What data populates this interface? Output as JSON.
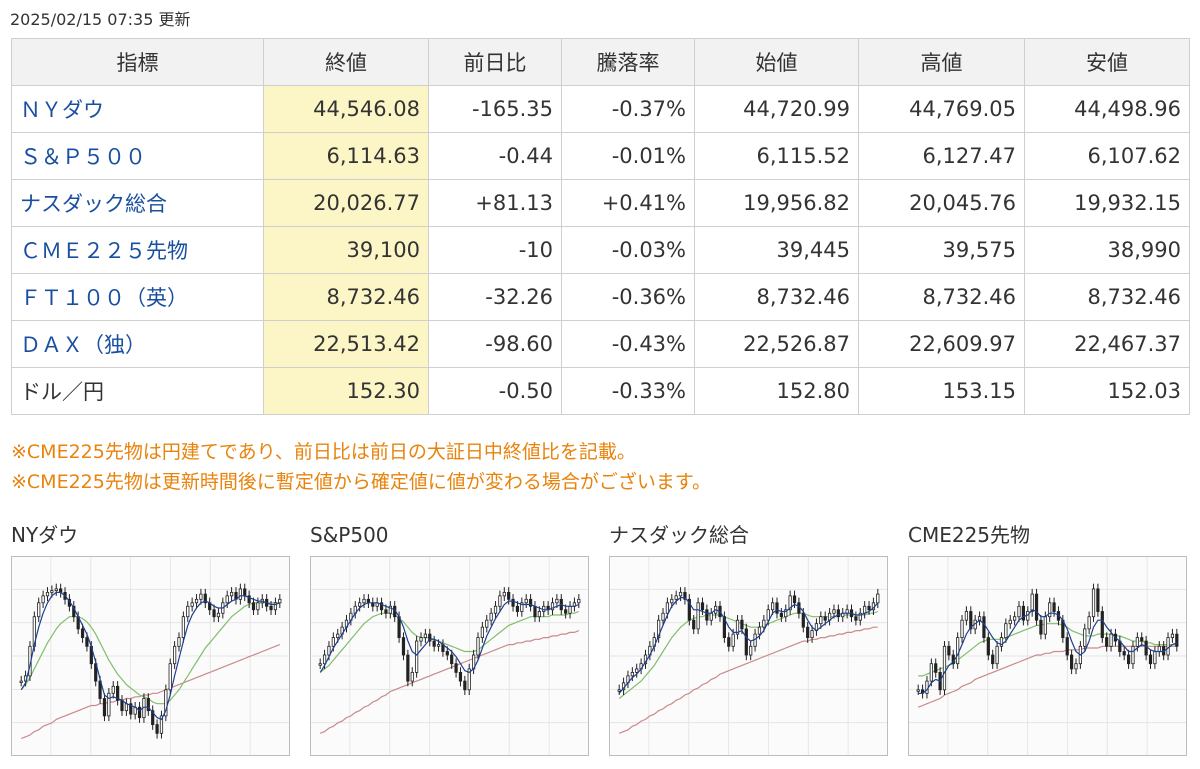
{
  "updated": "2025/02/15 07:35 更新",
  "table": {
    "headers": [
      "指標",
      "終値",
      "前日比",
      "騰落率",
      "始値",
      "高値",
      "安値"
    ],
    "rows": [
      {
        "name": "ＮＹダウ",
        "close": "44,546.08",
        "change": "-165.35",
        "rate": "-0.37%",
        "open": "44,720.99",
        "high": "44,769.05",
        "low": "44,498.96",
        "dir": "neg",
        "link": true
      },
      {
        "name": "Ｓ＆Ｐ５００",
        "close": "6,114.63",
        "change": "-0.44",
        "rate": "-0.01%",
        "open": "6,115.52",
        "high": "6,127.47",
        "low": "6,107.62",
        "dir": "neg",
        "link": true
      },
      {
        "name": "ナスダック総合",
        "close": "20,026.77",
        "change": "+81.13",
        "rate": "+0.41%",
        "open": "19,956.82",
        "high": "20,045.76",
        "low": "19,932.15",
        "dir": "pos",
        "link": true
      },
      {
        "name": "ＣＭＥ２２５先物",
        "close": "39,100",
        "change": "-10",
        "rate": "-0.03%",
        "open": "39,445",
        "high": "39,575",
        "low": "38,990",
        "dir": "neg",
        "link": true
      },
      {
        "name": "ＦＴ１００（英）",
        "close": "8,732.46",
        "change": "-32.26",
        "rate": "-0.36%",
        "open": "8,732.46",
        "high": "8,732.46",
        "low": "8,732.46",
        "dir": "neg",
        "link": true
      },
      {
        "name": "ＤＡＸ（独）",
        "close": "22,513.42",
        "change": "-98.60",
        "rate": "-0.43%",
        "open": "22,526.87",
        "high": "22,609.97",
        "low": "22,467.37",
        "dir": "neg",
        "link": true
      },
      {
        "name": "ドル／円",
        "close": "152.30",
        "change": "-0.50",
        "rate": "-0.33%",
        "open": "152.80",
        "high": "153.15",
        "low": "152.03",
        "dir": "neg",
        "link": false
      }
    ]
  },
  "notes": [
    "※CME225先物は円建てであり、前日比は前日の大証日中終値比を記載。",
    "※CME225先物は更新時間後に暫定値から確定値に値が変わる場合がございます。"
  ],
  "colors": {
    "positive": "#d0021b",
    "negative": "#1a4fa0",
    "close_highlight": "#fcf6c7",
    "note": "#e8830c",
    "ma_short": "#1f3f8f",
    "ma_mid": "#7fbf6a",
    "ma_long": "#c98a8a"
  },
  "chart_data": [
    {
      "type": "candlestick",
      "title": "NYダウ",
      "x": [
        1,
        2,
        3,
        4,
        5,
        6,
        7,
        8,
        9,
        10,
        11,
        12,
        13,
        14,
        15,
        16,
        17,
        18,
        19,
        20,
        21,
        22,
        23,
        24,
        25,
        26,
        27,
        28,
        29,
        30,
        31,
        32,
        33,
        34,
        35,
        36,
        37,
        38,
        39,
        40,
        41,
        42,
        43,
        44,
        45,
        46,
        47,
        48,
        49,
        50,
        51,
        52,
        53,
        54,
        55,
        56,
        57,
        58,
        59,
        60
      ],
      "values": [
        0.35,
        0.38,
        0.55,
        0.72,
        0.8,
        0.84,
        0.86,
        0.87,
        0.88,
        0.86,
        0.82,
        0.78,
        0.72,
        0.65,
        0.6,
        0.55,
        0.45,
        0.35,
        0.25,
        0.15,
        0.28,
        0.32,
        0.24,
        0.18,
        0.22,
        0.16,
        0.2,
        0.14,
        0.25,
        0.18,
        0.1,
        0.05,
        0.15,
        0.3,
        0.45,
        0.55,
        0.6,
        0.72,
        0.78,
        0.8,
        0.82,
        0.85,
        0.8,
        0.76,
        0.72,
        0.74,
        0.8,
        0.84,
        0.86,
        0.82,
        0.88,
        0.84,
        0.8,
        0.76,
        0.8,
        0.82,
        0.78,
        0.76,
        0.8,
        0.82
      ],
      "ma_short": [
        0.3,
        0.34,
        0.44,
        0.56,
        0.66,
        0.74,
        0.8,
        0.84,
        0.86,
        0.86,
        0.84,
        0.81,
        0.77,
        0.72,
        0.67,
        0.62,
        0.55,
        0.46,
        0.36,
        0.27,
        0.25,
        0.26,
        0.25,
        0.24,
        0.22,
        0.21,
        0.2,
        0.18,
        0.2,
        0.2,
        0.17,
        0.14,
        0.13,
        0.18,
        0.27,
        0.38,
        0.48,
        0.58,
        0.67,
        0.73,
        0.77,
        0.8,
        0.81,
        0.8,
        0.78,
        0.77,
        0.77,
        0.79,
        0.81,
        0.82,
        0.84,
        0.84,
        0.83,
        0.82,
        0.81,
        0.81,
        0.8,
        0.79,
        0.79,
        0.8
      ],
      "ma_mid": [
        0.3,
        0.33,
        0.37,
        0.42,
        0.47,
        0.52,
        0.57,
        0.61,
        0.65,
        0.68,
        0.7,
        0.72,
        0.72,
        0.72,
        0.71,
        0.69,
        0.66,
        0.62,
        0.57,
        0.52,
        0.47,
        0.43,
        0.39,
        0.36,
        0.33,
        0.31,
        0.29,
        0.27,
        0.26,
        0.25,
        0.23,
        0.22,
        0.22,
        0.22,
        0.24,
        0.27,
        0.3,
        0.34,
        0.38,
        0.42,
        0.46,
        0.5,
        0.54,
        0.57,
        0.6,
        0.63,
        0.66,
        0.69,
        0.72,
        0.74,
        0.76,
        0.78,
        0.79,
        0.8,
        0.8,
        0.8,
        0.8,
        0.8,
        0.8,
        0.8
      ],
      "ma_long": [
        0.02,
        0.03,
        0.04,
        0.06,
        0.07,
        0.09,
        0.1,
        0.11,
        0.13,
        0.14,
        0.15,
        0.16,
        0.17,
        0.18,
        0.19,
        0.2,
        0.21,
        0.21,
        0.22,
        0.22,
        0.23,
        0.23,
        0.24,
        0.24,
        0.25,
        0.25,
        0.26,
        0.26,
        0.27,
        0.27,
        0.28,
        0.28,
        0.29,
        0.3,
        0.31,
        0.32,
        0.33,
        0.34,
        0.35,
        0.36,
        0.37,
        0.38,
        0.39,
        0.4,
        0.41,
        0.42,
        0.43,
        0.44,
        0.45,
        0.46,
        0.47,
        0.48,
        0.49,
        0.5,
        0.51,
        0.52,
        0.53,
        0.54,
        0.55,
        0.56
      ]
    },
    {
      "type": "candlestick",
      "title": "S&P500",
      "x": [
        1,
        2,
        3,
        4,
        5,
        6,
        7,
        8,
        9,
        10,
        11,
        12,
        13,
        14,
        15,
        16,
        17,
        18,
        19,
        20,
        21,
        22,
        23,
        24,
        25,
        26,
        27,
        28,
        29,
        30,
        31,
        32,
        33,
        34,
        35,
        36,
        37,
        38,
        39,
        40,
        41,
        42,
        43,
        44,
        45,
        46,
        47,
        48,
        49,
        50,
        51,
        52,
        53,
        54,
        55,
        56,
        57,
        58,
        59,
        60
      ],
      "values": [
        0.45,
        0.5,
        0.55,
        0.6,
        0.62,
        0.66,
        0.7,
        0.74,
        0.78,
        0.8,
        0.82,
        0.8,
        0.78,
        0.8,
        0.76,
        0.74,
        0.78,
        0.72,
        0.6,
        0.5,
        0.35,
        0.4,
        0.58,
        0.6,
        0.62,
        0.58,
        0.55,
        0.56,
        0.52,
        0.5,
        0.45,
        0.4,
        0.35,
        0.3,
        0.42,
        0.5,
        0.6,
        0.66,
        0.7,
        0.74,
        0.78,
        0.84,
        0.86,
        0.82,
        0.78,
        0.75,
        0.8,
        0.82,
        0.78,
        0.72,
        0.75,
        0.78,
        0.76,
        0.8,
        0.82,
        0.76,
        0.74,
        0.78,
        0.8,
        0.82
      ],
      "ma_short": [
        0.4,
        0.44,
        0.49,
        0.54,
        0.58,
        0.62,
        0.66,
        0.7,
        0.74,
        0.77,
        0.79,
        0.8,
        0.8,
        0.8,
        0.79,
        0.78,
        0.77,
        0.76,
        0.72,
        0.66,
        0.58,
        0.52,
        0.5,
        0.53,
        0.56,
        0.59,
        0.59,
        0.58,
        0.56,
        0.54,
        0.52,
        0.49,
        0.45,
        0.41,
        0.4,
        0.42,
        0.47,
        0.54,
        0.61,
        0.66,
        0.71,
        0.75,
        0.79,
        0.81,
        0.81,
        0.8,
        0.79,
        0.79,
        0.79,
        0.78,
        0.77,
        0.76,
        0.76,
        0.77,
        0.78,
        0.79,
        0.78,
        0.78,
        0.78,
        0.79
      ],
      "ma_mid": [
        0.4,
        0.42,
        0.44,
        0.47,
        0.5,
        0.53,
        0.56,
        0.59,
        0.62,
        0.65,
        0.68,
        0.7,
        0.72,
        0.73,
        0.74,
        0.74,
        0.74,
        0.73,
        0.71,
        0.69,
        0.66,
        0.63,
        0.61,
        0.6,
        0.6,
        0.6,
        0.59,
        0.58,
        0.57,
        0.56,
        0.55,
        0.54,
        0.53,
        0.52,
        0.52,
        0.52,
        0.53,
        0.55,
        0.57,
        0.59,
        0.61,
        0.63,
        0.65,
        0.67,
        0.68,
        0.69,
        0.7,
        0.71,
        0.72,
        0.72,
        0.72,
        0.72,
        0.72,
        0.73,
        0.73,
        0.73,
        0.73,
        0.74,
        0.74,
        0.75
      ],
      "ma_long": [
        0.05,
        0.06,
        0.08,
        0.09,
        0.11,
        0.12,
        0.14,
        0.15,
        0.17,
        0.18,
        0.2,
        0.21,
        0.23,
        0.24,
        0.26,
        0.27,
        0.29,
        0.3,
        0.31,
        0.32,
        0.33,
        0.34,
        0.35,
        0.36,
        0.37,
        0.38,
        0.39,
        0.4,
        0.41,
        0.42,
        0.43,
        0.44,
        0.45,
        0.46,
        0.47,
        0.48,
        0.49,
        0.5,
        0.51,
        0.52,
        0.53,
        0.54,
        0.55,
        0.56,
        0.56,
        0.57,
        0.57,
        0.58,
        0.58,
        0.59,
        0.59,
        0.6,
        0.6,
        0.61,
        0.61,
        0.62,
        0.62,
        0.63,
        0.63,
        0.64
      ]
    },
    {
      "type": "candlestick",
      "title": "ナスダック総合",
      "x": [
        1,
        2,
        3,
        4,
        5,
        6,
        7,
        8,
        9,
        10,
        11,
        12,
        13,
        14,
        15,
        16,
        17,
        18,
        19,
        20,
        21,
        22,
        23,
        24,
        25,
        26,
        27,
        28,
        29,
        30,
        31,
        32,
        33,
        34,
        35,
        36,
        37,
        38,
        39,
        40,
        41,
        42,
        43,
        44,
        45,
        46,
        47,
        48,
        49,
        50,
        51,
        52,
        53,
        54,
        55,
        56,
        57,
        58,
        59,
        60
      ],
      "values": [
        0.3,
        0.34,
        0.38,
        0.4,
        0.42,
        0.45,
        0.5,
        0.55,
        0.6,
        0.7,
        0.74,
        0.8,
        0.82,
        0.84,
        0.86,
        0.82,
        0.7,
        0.65,
        0.8,
        0.76,
        0.7,
        0.74,
        0.78,
        0.72,
        0.6,
        0.55,
        0.62,
        0.7,
        0.65,
        0.5,
        0.55,
        0.62,
        0.66,
        0.7,
        0.76,
        0.8,
        0.74,
        0.72,
        0.76,
        0.84,
        0.8,
        0.74,
        0.66,
        0.6,
        0.64,
        0.68,
        0.72,
        0.7,
        0.74,
        0.76,
        0.72,
        0.74,
        0.76,
        0.72,
        0.7,
        0.74,
        0.78,
        0.76,
        0.8,
        0.85
      ],
      "ma_short": [
        0.28,
        0.31,
        0.34,
        0.37,
        0.39,
        0.42,
        0.46,
        0.5,
        0.55,
        0.61,
        0.67,
        0.73,
        0.78,
        0.81,
        0.83,
        0.83,
        0.8,
        0.76,
        0.76,
        0.75,
        0.74,
        0.74,
        0.76,
        0.75,
        0.71,
        0.66,
        0.63,
        0.63,
        0.64,
        0.6,
        0.58,
        0.59,
        0.61,
        0.64,
        0.69,
        0.74,
        0.76,
        0.75,
        0.75,
        0.77,
        0.79,
        0.78,
        0.75,
        0.7,
        0.66,
        0.64,
        0.66,
        0.68,
        0.7,
        0.72,
        0.73,
        0.74,
        0.74,
        0.74,
        0.73,
        0.73,
        0.74,
        0.75,
        0.77,
        0.8
      ],
      "ma_mid": [
        0.25,
        0.27,
        0.29,
        0.31,
        0.33,
        0.35,
        0.38,
        0.41,
        0.44,
        0.48,
        0.52,
        0.56,
        0.6,
        0.63,
        0.66,
        0.68,
        0.7,
        0.71,
        0.72,
        0.72,
        0.73,
        0.73,
        0.73,
        0.73,
        0.72,
        0.71,
        0.7,
        0.69,
        0.68,
        0.67,
        0.66,
        0.66,
        0.66,
        0.67,
        0.68,
        0.69,
        0.7,
        0.71,
        0.72,
        0.73,
        0.74,
        0.74,
        0.74,
        0.73,
        0.72,
        0.72,
        0.72,
        0.72,
        0.72,
        0.72,
        0.72,
        0.73,
        0.73,
        0.73,
        0.73,
        0.73,
        0.73,
        0.74,
        0.74,
        0.75
      ],
      "ma_long": [
        0.05,
        0.06,
        0.07,
        0.09,
        0.1,
        0.12,
        0.13,
        0.15,
        0.16,
        0.18,
        0.19,
        0.21,
        0.22,
        0.24,
        0.25,
        0.27,
        0.28,
        0.3,
        0.31,
        0.33,
        0.34,
        0.36,
        0.37,
        0.39,
        0.4,
        0.41,
        0.42,
        0.43,
        0.44,
        0.45,
        0.46,
        0.47,
        0.48,
        0.49,
        0.5,
        0.51,
        0.52,
        0.53,
        0.54,
        0.55,
        0.56,
        0.57,
        0.58,
        0.58,
        0.59,
        0.59,
        0.6,
        0.6,
        0.61,
        0.61,
        0.62,
        0.62,
        0.63,
        0.63,
        0.64,
        0.64,
        0.65,
        0.65,
        0.66,
        0.66
      ]
    },
    {
      "type": "candlestick",
      "title": "CME225先物",
      "x": [
        1,
        2,
        3,
        4,
        5,
        6,
        7,
        8,
        9,
        10,
        11,
        12,
        13,
        14,
        15,
        16,
        17,
        18,
        19,
        20,
        21,
        22,
        23,
        24,
        25,
        26,
        27,
        28,
        29,
        30,
        31,
        32,
        33,
        34,
        35,
        36,
        37,
        38,
        39,
        40,
        41,
        42,
        43,
        44,
        45,
        46,
        47,
        48,
        49,
        50,
        51,
        52,
        53,
        54,
        55,
        56,
        57,
        58,
        59,
        60
      ],
      "values": [
        0.3,
        0.28,
        0.35,
        0.45,
        0.4,
        0.3,
        0.55,
        0.5,
        0.45,
        0.6,
        0.7,
        0.75,
        0.65,
        0.7,
        0.72,
        0.6,
        0.5,
        0.45,
        0.55,
        0.6,
        0.68,
        0.7,
        0.72,
        0.78,
        0.7,
        0.75,
        0.85,
        0.7,
        0.62,
        0.72,
        0.8,
        0.75,
        0.7,
        0.6,
        0.5,
        0.42,
        0.45,
        0.55,
        0.65,
        0.72,
        0.88,
        0.75,
        0.6,
        0.55,
        0.62,
        0.58,
        0.52,
        0.5,
        0.45,
        0.55,
        0.6,
        0.58,
        0.5,
        0.45,
        0.52,
        0.55,
        0.5,
        0.6,
        0.62,
        0.55
      ],
      "ma_short": [
        0.28,
        0.28,
        0.3,
        0.34,
        0.36,
        0.35,
        0.4,
        0.44,
        0.46,
        0.5,
        0.56,
        0.62,
        0.66,
        0.68,
        0.7,
        0.68,
        0.64,
        0.6,
        0.57,
        0.56,
        0.58,
        0.62,
        0.66,
        0.7,
        0.72,
        0.73,
        0.76,
        0.75,
        0.72,
        0.72,
        0.74,
        0.74,
        0.73,
        0.7,
        0.65,
        0.58,
        0.52,
        0.5,
        0.52,
        0.58,
        0.66,
        0.7,
        0.7,
        0.66,
        0.63,
        0.6,
        0.58,
        0.55,
        0.52,
        0.52,
        0.54,
        0.56,
        0.55,
        0.53,
        0.52,
        0.52,
        0.52,
        0.54,
        0.56,
        0.57
      ],
      "ma_mid": [
        0.38,
        0.38,
        0.39,
        0.4,
        0.41,
        0.42,
        0.43,
        0.44,
        0.45,
        0.47,
        0.49,
        0.51,
        0.53,
        0.55,
        0.57,
        0.58,
        0.59,
        0.59,
        0.59,
        0.59,
        0.6,
        0.61,
        0.62,
        0.63,
        0.64,
        0.65,
        0.66,
        0.67,
        0.67,
        0.68,
        0.68,
        0.68,
        0.68,
        0.67,
        0.66,
        0.64,
        0.63,
        0.62,
        0.61,
        0.61,
        0.61,
        0.62,
        0.62,
        0.62,
        0.62,
        0.61,
        0.61,
        0.6,
        0.59,
        0.58,
        0.58,
        0.58,
        0.57,
        0.57,
        0.56,
        0.56,
        0.56,
        0.56,
        0.56,
        0.56
      ],
      "ma_long": [
        0.2,
        0.21,
        0.22,
        0.23,
        0.24,
        0.25,
        0.27,
        0.28,
        0.29,
        0.3,
        0.32,
        0.33,
        0.34,
        0.36,
        0.37,
        0.38,
        0.39,
        0.4,
        0.41,
        0.42,
        0.43,
        0.44,
        0.45,
        0.46,
        0.47,
        0.48,
        0.49,
        0.5,
        0.5,
        0.51,
        0.51,
        0.52,
        0.52,
        0.52,
        0.53,
        0.53,
        0.53,
        0.53,
        0.54,
        0.54,
        0.54,
        0.54,
        0.55,
        0.55,
        0.55,
        0.55,
        0.55,
        0.55,
        0.55,
        0.55,
        0.55,
        0.55,
        0.55,
        0.55,
        0.55,
        0.55,
        0.55,
        0.55,
        0.55,
        0.55
      ]
    }
  ]
}
